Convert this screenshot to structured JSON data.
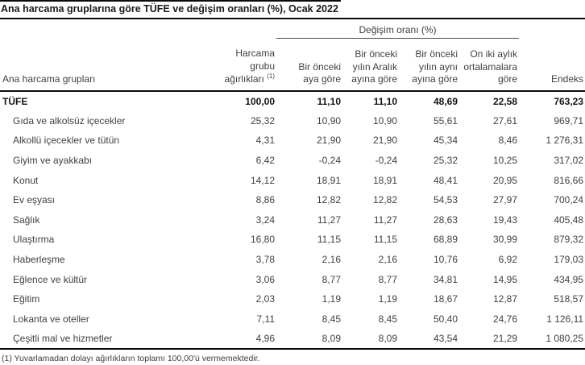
{
  "title": "Ana harcama gruplarına göre TÜFE ve değişim oranları (%), Ocak 2022",
  "table": {
    "group_header": "Değişim oranı (%)",
    "row_header_label": "Ana harcama grupları",
    "columns": [
      {
        "id": "weights",
        "lines": [
          "Harcama",
          "grubu",
          "ağırlıkları"
        ],
        "sup": "(1)"
      },
      {
        "id": "vs-prev-month",
        "lines": [
          "Bir önceki",
          "aya göre"
        ]
      },
      {
        "id": "vs-prev-december",
        "lines": [
          "Bir önceki",
          "yılın Aralık",
          "ayına göre"
        ]
      },
      {
        "id": "vs-same-month",
        "lines": [
          "Bir önceki",
          "yılın aynı",
          "ayına göre"
        ]
      },
      {
        "id": "twelve-month-avg",
        "lines": [
          "On iki aylık",
          "ortalamalara",
          "göre"
        ]
      },
      {
        "id": "index",
        "lines": [
          "Endeks"
        ]
      }
    ],
    "rows": [
      {
        "label": "TÜFE",
        "bold": true,
        "values": [
          "100,00",
          "11,10",
          "11,10",
          "48,69",
          "22,58",
          "763,23"
        ]
      },
      {
        "label": "Gıda ve alkolsüz içecekler",
        "bold": false,
        "values": [
          "25,32",
          "10,90",
          "10,90",
          "55,61",
          "27,61",
          "969,71"
        ]
      },
      {
        "label": "Alkollü içecekler ve tütün",
        "bold": false,
        "values": [
          "4,31",
          "21,90",
          "21,90",
          "45,34",
          "8,46",
          "1 276,31"
        ]
      },
      {
        "label": "Giyim ve ayakkabı",
        "bold": false,
        "values": [
          "6,42",
          "-0,24",
          "-0,24",
          "25,32",
          "10,25",
          "317,02"
        ]
      },
      {
        "label": "Konut",
        "bold": false,
        "values": [
          "14,12",
          "18,91",
          "18,91",
          "48,41",
          "20,95",
          "816,66"
        ]
      },
      {
        "label": "Ev eşyası",
        "bold": false,
        "values": [
          "8,86",
          "12,82",
          "12,82",
          "54,53",
          "27,97",
          "700,24"
        ]
      },
      {
        "label": "Sağlık",
        "bold": false,
        "values": [
          "3,24",
          "11,27",
          "11,27",
          "28,63",
          "19,43",
          "405,48"
        ]
      },
      {
        "label": "Ulaştırma",
        "bold": false,
        "values": [
          "16,80",
          "11,15",
          "11,15",
          "68,89",
          "30,99",
          "879,32"
        ]
      },
      {
        "label": "Haberleşme",
        "bold": false,
        "values": [
          "3,78",
          "2,16",
          "2,16",
          "10,76",
          "6,92",
          "179,03"
        ]
      },
      {
        "label": "Eğlence ve kültür",
        "bold": false,
        "values": [
          "3,06",
          "8,77",
          "8,77",
          "34,81",
          "14,95",
          "434,95"
        ]
      },
      {
        "label": "Eğitim",
        "bold": false,
        "values": [
          "2,03",
          "1,19",
          "1,19",
          "18,67",
          "12,87",
          "518,57"
        ]
      },
      {
        "label": "Lokanta ve oteller",
        "bold": false,
        "values": [
          "7,11",
          "8,45",
          "8,45",
          "50,40",
          "24,76",
          "1 126,11"
        ]
      },
      {
        "label": "Çeşitli mal ve hizmetler",
        "bold": false,
        "values": [
          "4,96",
          "8,09",
          "8,09",
          "43,54",
          "21,29",
          "1 080,25"
        ]
      }
    ]
  },
  "footnote": "(1) Yuvarlamadan dolayı ağırlıkların toplamı 100,00'ü vermemektedir."
}
